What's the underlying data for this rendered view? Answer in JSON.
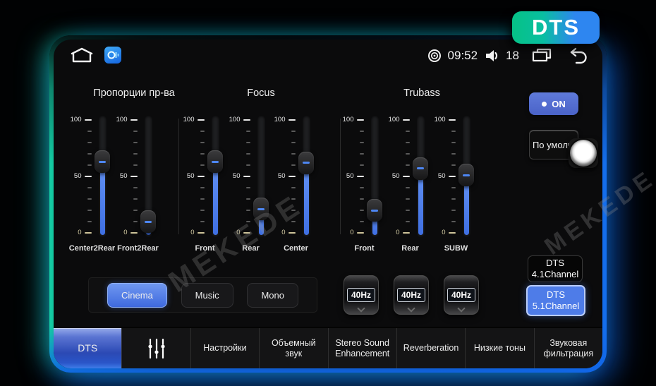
{
  "badge": {
    "label": "DTS"
  },
  "statusbar": {
    "time": "09:52",
    "volume_level": "18",
    "icons": [
      "home-icon",
      "eq-app-icon",
      "recorder-icon",
      "speaker-icon",
      "recent-apps-icon",
      "back-icon"
    ]
  },
  "sliders": {
    "scale": {
      "max": "100",
      "mid": "50",
      "min": "0"
    },
    "groups": [
      {
        "title": "Пропорции пр-ва",
        "channels": [
          {
            "label": "Center2Rear",
            "value": 63
          },
          {
            "label": "Front2Rear",
            "value": 10
          }
        ]
      },
      {
        "title": "Focus",
        "channels": [
          {
            "label": "Front",
            "value": 63
          },
          {
            "label": "Rear",
            "value": 21
          },
          {
            "label": "Center",
            "value": 62
          }
        ]
      },
      {
        "title": "Trubass",
        "channels": [
          {
            "label": "Front",
            "value": 20
          },
          {
            "label": "Rear",
            "value": 57
          },
          {
            "label": "SUBW",
            "value": 51
          }
        ]
      }
    ]
  },
  "controls": {
    "on_button": "ON",
    "default_button": "По умолч.",
    "modes": [
      {
        "label": "Cinema",
        "active": true
      },
      {
        "label": "Music",
        "active": false
      },
      {
        "label": "Mono",
        "active": false
      }
    ],
    "freq_selectors": [
      "40Hz",
      "40Hz",
      "40Hz"
    ],
    "channel_buttons": [
      {
        "line1": "DTS",
        "line2": "4.1Channel",
        "active": false
      },
      {
        "line1": "DTS",
        "line2": "5.1Channel",
        "active": true
      }
    ]
  },
  "tabbar": {
    "tabs": [
      {
        "label": "DTS",
        "active": true,
        "icon": null
      },
      {
        "label": "",
        "active": false,
        "icon": "equalizer-icon"
      },
      {
        "label": "Настройки",
        "active": false,
        "icon": null
      },
      {
        "label": "Объемный звук",
        "active": false,
        "icon": null
      },
      {
        "label": "Stereo Sound Enhancement",
        "active": false,
        "icon": null
      },
      {
        "label": "Reverberation",
        "active": false,
        "icon": null
      },
      {
        "label": "Низкие тоны",
        "active": false,
        "icon": null
      },
      {
        "label": "Звуковая фильтрация",
        "active": false,
        "icon": null
      }
    ]
  },
  "watermark": {
    "text": "MEKEDE"
  },
  "colors": {
    "accent_blue": "#4a7ae0",
    "slider_fill": "#4a80f0",
    "bezel_teal": "#14cfa6",
    "bezel_blue": "#1168e6",
    "badge_green": "#06c286",
    "badge_blue": "#2e86f0"
  }
}
